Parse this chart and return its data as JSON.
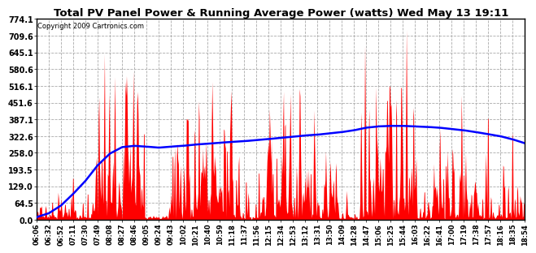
{
  "title": "Total PV Panel Power & Running Average Power (watts) Wed May 13 19:11",
  "copyright": "Copyright 2009 Cartronics.com",
  "background_color": "#ffffff",
  "plot_background": "#ffffff",
  "yticks": [
    0.0,
    64.5,
    129.0,
    193.5,
    258.0,
    322.6,
    387.1,
    451.6,
    516.1,
    580.6,
    645.1,
    709.6,
    774.1
  ],
  "ymax": 774.1,
  "ymin": 0.0,
  "fill_color": "red",
  "line_color": "blue",
  "grid_color": "#aaaaaa",
  "xtick_labels": [
    "06:06",
    "06:32",
    "06:52",
    "07:11",
    "07:30",
    "07:49",
    "08:08",
    "08:27",
    "08:46",
    "09:05",
    "09:24",
    "09:43",
    "10:02",
    "10:21",
    "10:40",
    "10:59",
    "11:18",
    "11:37",
    "11:56",
    "12:15",
    "12:34",
    "12:53",
    "13:12",
    "13:31",
    "13:50",
    "14:09",
    "14:28",
    "14:47",
    "15:06",
    "15:25",
    "15:44",
    "16:03",
    "16:22",
    "16:41",
    "17:00",
    "17:19",
    "17:38",
    "17:57",
    "18:16",
    "18:35",
    "18:54"
  ],
  "num_points": 41,
  "running_avg": [
    10,
    25,
    55,
    100,
    150,
    210,
    255,
    280,
    285,
    282,
    278,
    282,
    285,
    290,
    293,
    297,
    300,
    303,
    307,
    311,
    316,
    320,
    325,
    328,
    333,
    338,
    345,
    355,
    360,
    362,
    362,
    360,
    358,
    355,
    350,
    345,
    338,
    330,
    322,
    310,
    295
  ]
}
